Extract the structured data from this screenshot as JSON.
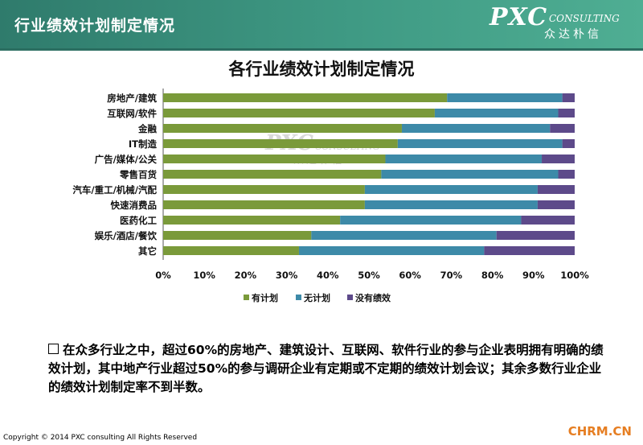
{
  "header": {
    "title": "行业绩效计划制定情况",
    "logo_main": "PXC",
    "logo_sub": "CONSULTING",
    "logo_cn": "众达朴信"
  },
  "watermark": {
    "main": "PXC",
    "sub": "CONSULTING",
    "cn": "众达朴信"
  },
  "chart_data": {
    "type": "bar",
    "orientation": "horizontal",
    "stacked": "percent",
    "title": "各行业绩效计划制定情况",
    "categories": [
      "房地产/建筑",
      "互联网/软件",
      "金融",
      "IT制造",
      "广告/媒体/公关",
      "零售百货",
      "汽车/重工/机械/汽配",
      "快速消费品",
      "医药化工",
      "娱乐/酒店/餐饮",
      "其它"
    ],
    "series": [
      {
        "name": "有计划",
        "color": "#7a9a3a",
        "values": [
          69,
          66,
          58,
          57,
          54,
          53,
          49,
          49,
          43,
          36,
          33
        ]
      },
      {
        "name": "无计划",
        "color": "#3d8aa8",
        "values": [
          28,
          30,
          36,
          40,
          38,
          43,
          42,
          42,
          44,
          45,
          45
        ]
      },
      {
        "name": "没有绩效",
        "color": "#5d4a8a",
        "values": [
          3,
          4,
          6,
          3,
          8,
          4,
          9,
          9,
          13,
          19,
          22
        ]
      }
    ],
    "xlim": [
      0,
      100
    ],
    "xticks": [
      "0%",
      "10%",
      "20%",
      "30%",
      "40%",
      "50%",
      "60%",
      "70%",
      "80%",
      "90%",
      "100%"
    ],
    "legend_position": "bottom",
    "grid": false
  },
  "note": {
    "bullet_text": "在众多行业之中，超过60%的房地产、建筑设计、互联网、软件行业的参与企业表明拥有明确的绩效计划，其中地产行业超过50%的参与调研企业有定期或不定期的绩效计划会议；其余多数行业企业的绩效计划制定率不到半数。"
  },
  "footer": {
    "copyright": "Copyright © 2014  PXC consulting All Rights Reserved",
    "brand": "CHRM.CN"
  }
}
